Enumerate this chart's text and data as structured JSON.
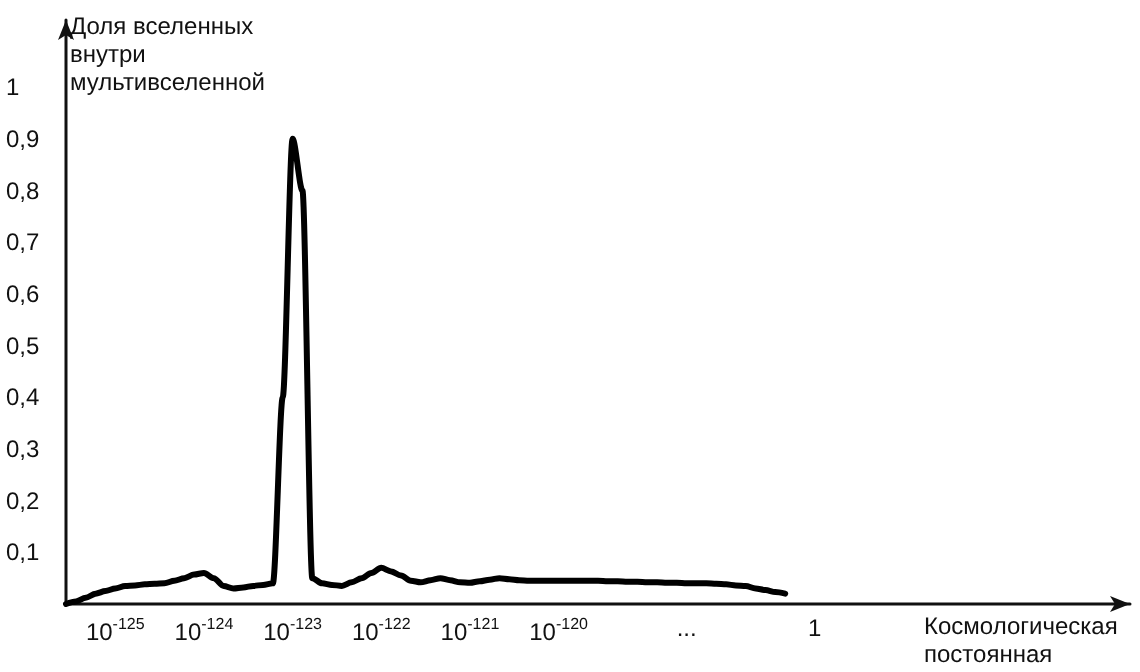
{
  "chart_data": {
    "type": "line",
    "ylabel": "Доля вселенных\nвнутри\nмультивселенной",
    "xlabel": "Космологическая\nпостоянная",
    "categories": [
      null,
      null,
      null,
      null,
      null,
      "10$^{-125}$",
      null,
      null,
      null,
      null,
      null,
      null,
      null,
      null,
      "10$^{-124}$",
      null,
      null,
      null,
      null,
      null,
      null,
      null,
      null,
      "10$^{-123}$",
      null,
      null,
      null,
      null,
      null,
      null,
      null,
      null,
      "10$^{-122}$",
      null,
      null,
      null,
      null,
      null,
      null,
      null,
      null,
      "10$^{-121}$",
      null,
      null,
      null,
      null,
      null,
      null,
      null,
      null,
      "10$^{-120}$",
      null,
      null,
      null,
      null,
      null,
      null,
      null,
      null,
      null,
      null,
      null,
      null,
      "...",
      null,
      null,
      null,
      null,
      null,
      null,
      null,
      null,
      null,
      null,
      null,
      null,
      "1",
      null,
      null,
      null,
      null,
      null,
      null,
      null,
      null,
      null,
      null,
      null,
      null,
      null,
      null,
      null,
      null,
      null,
      null,
      null,
      null,
      null,
      null,
      null,
      null,
      null,
      null,
      null,
      null,
      null,
      null,
      null,
      null
    ],
    "ylim": [
      0,
      1.13
    ],
    "yticks": [
      {
        "value": 0.1,
        "label": "0,1"
      },
      {
        "value": 0.2,
        "label": "0,2"
      },
      {
        "value": 0.3,
        "label": "0,3"
      },
      {
        "value": 0.4,
        "label": "0,4"
      },
      {
        "value": 0.5,
        "label": "0,5"
      },
      {
        "value": 0.6,
        "label": "0,6"
      },
      {
        "value": 0.7,
        "label": "0,7"
      },
      {
        "value": 0.8,
        "label": "0,8"
      },
      {
        "value": 0.9,
        "label": "0,9"
      },
      1
    ],
    "grid": false,
    "marker": "none",
    "line_style": "solid",
    "series": [
      {
        "color": "#000000",
        "values": [
          0,
          0.005,
          0.012,
          0.02,
          0.025,
          0.03,
          0.035,
          0.036,
          0.038,
          0.039,
          0.04,
          0.045,
          0.05,
          0.057,
          0.06,
          0.05,
          0.035,
          0.03,
          0.032,
          0.035,
          0.037,
          0.04,
          0.4,
          0.9,
          0.8,
          0.05,
          0.04,
          0.037,
          0.035,
          0.042,
          0.05,
          0.06,
          0.07,
          0.063,
          0.055,
          0.045,
          0.042,
          0.046,
          0.05,
          0.046,
          0.042,
          0.041,
          0.044,
          0.047,
          0.05,
          0.048,
          0.046,
          0.045,
          0.045,
          0.045,
          0.045,
          0.045,
          0.045,
          0.045,
          0.045,
          0.044,
          0.044,
          0.043,
          0.043,
          0.042,
          0.042,
          0.041,
          0.041,
          0.04,
          0.04,
          0.04,
          0.039,
          0.038,
          0.036,
          0.035,
          0.03,
          0.027,
          0.023,
          0.02,
          null,
          null,
          null,
          null,
          null,
          null,
          null,
          null,
          null,
          null,
          null,
          null,
          null,
          null,
          null,
          null,
          null,
          null,
          null,
          null,
          null,
          null,
          null,
          null,
          null,
          null,
          null,
          null,
          null,
          null,
          null,
          null,
          null,
          null,
          null
        ]
      }
    ]
  }
}
